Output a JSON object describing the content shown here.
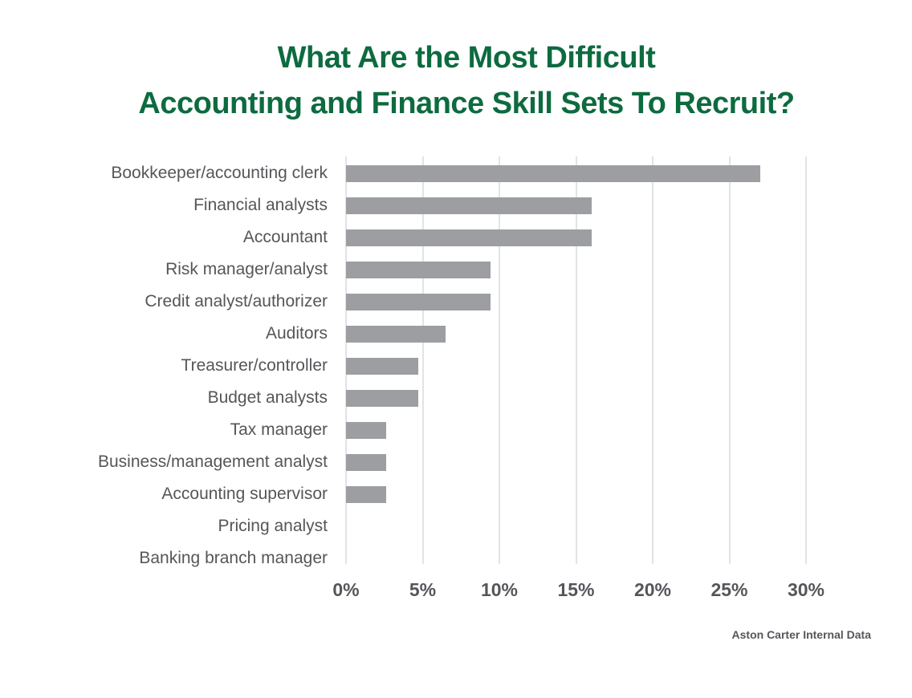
{
  "title": {
    "line1": "What Are the Most Difficult",
    "line2": "Accounting and Finance Skill Sets To Recruit?"
  },
  "footer": {
    "source": "Aston Carter Internal Data"
  },
  "colors": {
    "title_green": "#0d6b3f",
    "text_gray": "#55565a",
    "bar_gray": "#9c9ea1",
    "gridline_gray": "#e2e3e4"
  },
  "chart_data": {
    "type": "bar",
    "orientation": "horizontal",
    "title": "What Are the Most Difficult Accounting and Finance Skill Sets To Recruit?",
    "xlabel": "",
    "ylabel": "",
    "xlim": [
      0,
      30
    ],
    "grid": true,
    "x_tick_labels": [
      "0%",
      "5%",
      "10%",
      "15%",
      "20%",
      "25%",
      "30%"
    ],
    "x_tick_values": [
      0,
      5,
      10,
      15,
      20,
      25,
      30
    ],
    "categories": [
      "Bookkeeper/accounting clerk",
      "Financial analysts",
      "Accountant",
      "Risk manager/analyst",
      "Credit analyst/authorizer",
      "Auditors",
      "Treasurer/controller",
      "Budget analysts",
      "Tax manager",
      "Business/management analyst",
      "Accounting supervisor",
      "Pricing analyst",
      "Banking branch manager"
    ],
    "values": [
      27,
      16,
      16,
      9.4,
      9.4,
      6.5,
      4.7,
      4.7,
      2.6,
      2.6,
      2.6,
      0,
      0
    ],
    "source": "Aston Carter Internal Data"
  }
}
